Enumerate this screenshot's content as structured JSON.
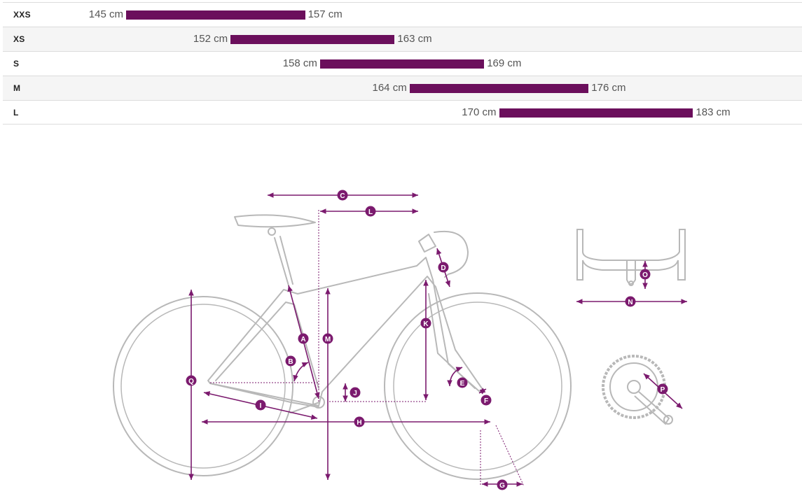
{
  "size_chart": {
    "unit": "cm",
    "bar_color": "#6b0f5c",
    "rows": [
      {
        "size": "XXS",
        "min_label": "145 cm",
        "max_label": "157 cm",
        "min": 145,
        "max": 157
      },
      {
        "size": "XS",
        "min_label": "152 cm",
        "max_label": "163 cm",
        "min": 152,
        "max": 163
      },
      {
        "size": "S",
        "min_label": "158 cm",
        "max_label": "169 cm",
        "min": 158,
        "max": 169
      },
      {
        "size": "M",
        "min_label": "164 cm",
        "max_label": "176 cm",
        "min": 164,
        "max": 176
      },
      {
        "size": "L",
        "min_label": "170 cm",
        "max_label": "183 cm",
        "min": 170,
        "max": 183
      }
    ]
  },
  "geometry_diagram": {
    "accent_color": "#7b1a6e",
    "frame_color": "#b8b8b8",
    "markers": {
      "A": "A",
      "B": "B",
      "C": "C",
      "D": "D",
      "E": "E",
      "F": "F",
      "G": "G",
      "H": "H",
      "I": "I",
      "J": "J",
      "K": "K",
      "L": "L",
      "M": "M",
      "N": "N",
      "O": "O",
      "P": "P",
      "Q": "Q"
    }
  }
}
